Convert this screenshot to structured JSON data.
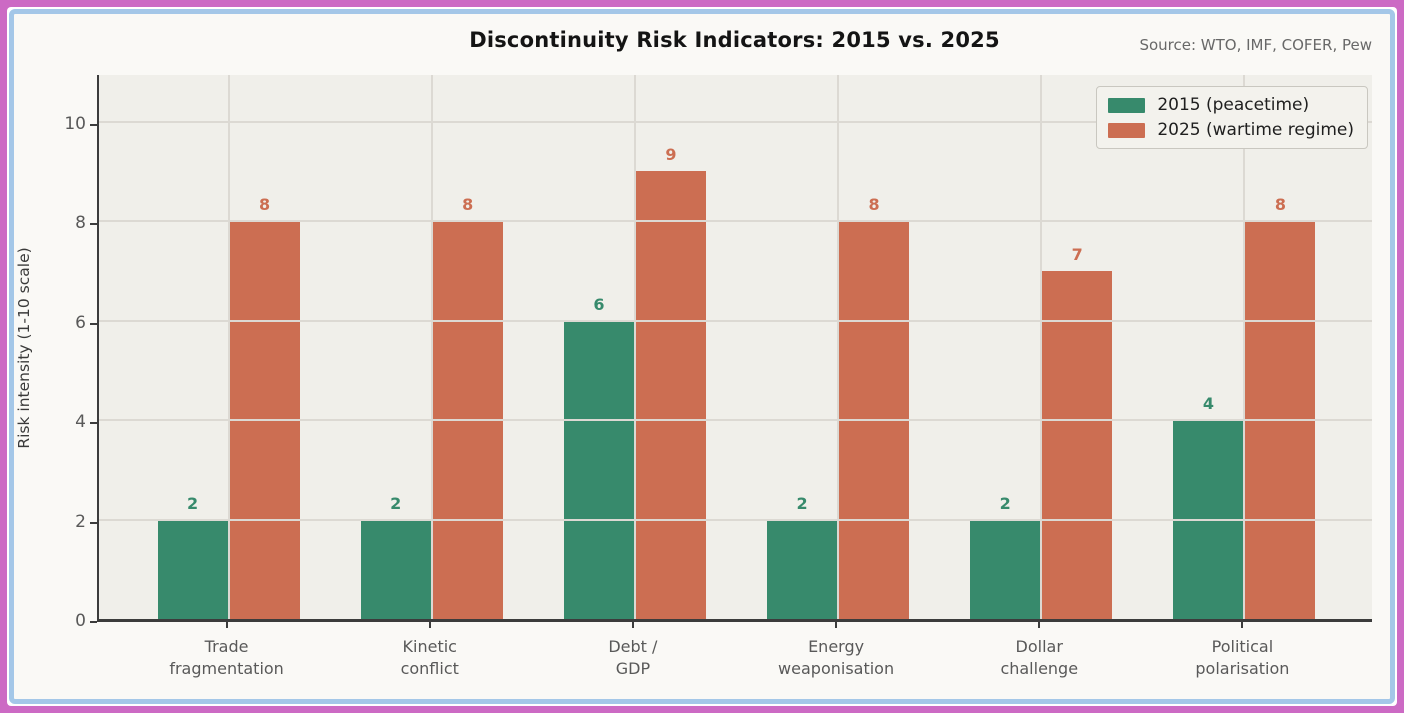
{
  "frame": {
    "outer_border_color": "#cc6ac4",
    "inner_border_color": "#a4c7e8",
    "figure_bg": "#faf9f6",
    "plot_bg": "#f0efea",
    "grid_color": "#dcd9d3",
    "spine_color": "#3c3c3c"
  },
  "header": {
    "title": "Discontinuity Risk Indicators: 2015 vs. 2025",
    "source": "Source: WTO, IMF, COFER, Pew"
  },
  "chart_data": {
    "type": "bar",
    "title": "Discontinuity Risk Indicators: 2015 vs. 2025",
    "categories": [
      "Trade\nfragmentation",
      "Kinetic\nconflict",
      "Debt /\nGDP",
      "Energy\nweaponisation",
      "Dollar\nchallenge",
      "Political\npolarisation"
    ],
    "series": [
      {
        "name": "2015 (peacetime)",
        "color": "#378a6c",
        "values": [
          2,
          2,
          6,
          2,
          2,
          4
        ]
      },
      {
        "name": "2025 (wartime regime)",
        "color": "#cc6e52",
        "values": [
          8,
          8,
          9,
          8,
          7,
          8
        ]
      }
    ],
    "xlabel": "",
    "ylabel": "Risk intensity (1-10 scale)",
    "ylim": [
      0,
      11
    ],
    "yticks": [
      0,
      2,
      4,
      6,
      8,
      10
    ],
    "grid": true,
    "grid_on_top": true,
    "value_labels": true,
    "legend_position": "upper right"
  }
}
